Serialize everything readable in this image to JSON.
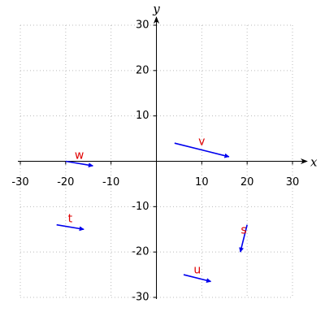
{
  "chart_data": {
    "type": "vector",
    "xlabel": "x",
    "ylabel": "y",
    "xlim": [
      -30,
      30
    ],
    "ylim": [
      -30,
      30
    ],
    "xticks": [
      -30,
      -20,
      -10,
      10,
      20,
      30
    ],
    "yticks": [
      -30,
      -20,
      -10,
      10,
      20,
      30
    ],
    "grid": true,
    "color": "#0000ee",
    "label_color": "#e00000",
    "vectors": [
      {
        "name": "v",
        "start": [
          4,
          4
        ],
        "end": [
          16,
          1
        ]
      },
      {
        "name": "w",
        "start": [
          -20,
          0
        ],
        "end": [
          -14,
          -1
        ]
      },
      {
        "name": "t",
        "start": [
          -22,
          -14
        ],
        "end": [
          -16,
          -15
        ]
      },
      {
        "name": "s",
        "start": [
          20,
          -14
        ],
        "end": [
          18.5,
          -20
        ]
      },
      {
        "name": "u",
        "start": [
          6,
          -25
        ],
        "end": [
          12,
          -26.5
        ]
      }
    ]
  }
}
